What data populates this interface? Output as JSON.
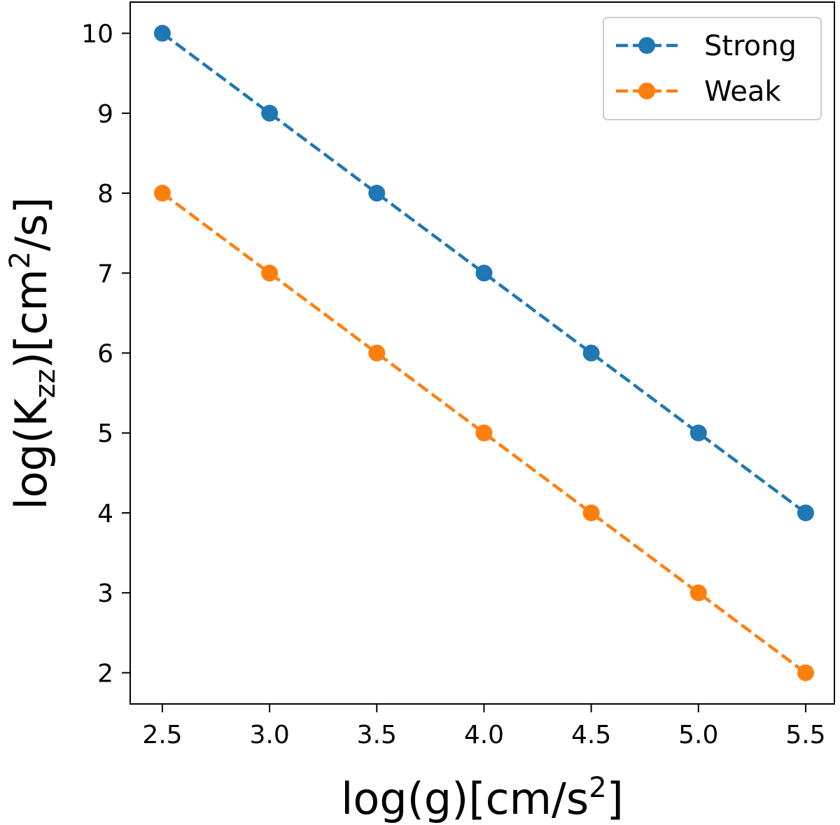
{
  "chart_data": {
    "type": "line",
    "xlabel": "log(g)[cm/s²]",
    "ylabel_parts": {
      "pre": "log(K",
      "sub": "zz",
      "mid": ")[cm",
      "sup": "2",
      "post": "/s]"
    },
    "xlabel_parts": {
      "pre": "log(g)[cm/s",
      "sup": "2",
      "post": "]"
    },
    "x": [
      2.5,
      3.0,
      3.5,
      4.0,
      4.5,
      5.0,
      5.5
    ],
    "series": [
      {
        "name": "Strong",
        "color": "#1f77b4",
        "values": [
          10,
          9,
          8,
          7,
          6,
          5,
          4
        ]
      },
      {
        "name": "Weak",
        "color": "#ff7f0e",
        "values": [
          8,
          7,
          6,
          5,
          4,
          3,
          2
        ]
      }
    ],
    "xticks": [
      "2.5",
      "3.0",
      "3.5",
      "4.0",
      "4.5",
      "5.0",
      "5.5"
    ],
    "yticks": [
      "2",
      "3",
      "4",
      "5",
      "6",
      "7",
      "8",
      "9",
      "10"
    ],
    "xlim": [
      2.35,
      5.634
    ],
    "ylim": [
      1.61,
      10.39
    ],
    "line_style": "dashed",
    "marker": "circle",
    "grid": false,
    "legend_position": "top-right"
  }
}
